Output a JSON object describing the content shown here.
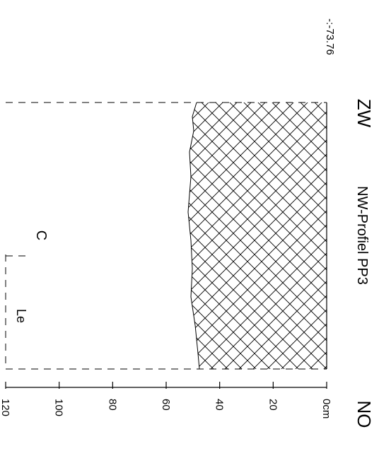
{
  "profile": {
    "title": "NW-Profiel PP3",
    "left_end_label": "ZW",
    "right_end_label": "NO",
    "elevation_label": "-:-73.76"
  },
  "scale": {
    "unit": "cm",
    "ticks": [
      "0cm",
      "20",
      "40",
      "60",
      "80",
      "100",
      "120"
    ]
  },
  "layers": [
    {
      "label": "C"
    },
    {
      "label": "Le"
    }
  ],
  "legend_hatch": "crosshatch"
}
